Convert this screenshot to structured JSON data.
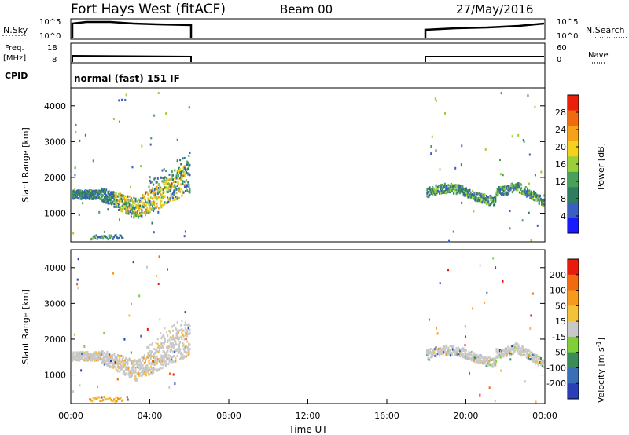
{
  "header": {
    "title": "Fort Hays West (fitACF)",
    "beam": "Beam 00",
    "date": "27/May/2016"
  },
  "nsky_panel": {
    "left_label": "N.Sky",
    "right_label": "N.Search",
    "left_ticks": [
      "10^5",
      "10^0"
    ],
    "right_ticks": [
      "10^5",
      "10^0"
    ]
  },
  "freq_panel": {
    "left_label_top": "Freq.",
    "left_label_bottom": "[MHz]",
    "right_label": "Nave",
    "left_ticks": [
      "18",
      "8"
    ],
    "right_ticks": [
      "60",
      "0"
    ]
  },
  "cpid": {
    "label": "CPID",
    "value": "normal (fast) 151 IF"
  },
  "chart_data": [
    {
      "type": "heatmap",
      "name": "power",
      "ylabel": "Slant Range [km]",
      "yticks": [
        "4000",
        "3000",
        "2000",
        "1000"
      ],
      "ylim": [
        200,
        4500
      ],
      "xlim_hours": [
        0,
        24
      ],
      "colorbar": {
        "label": "Power [dB]",
        "ticks": [
          "28",
          "24",
          "20",
          "16",
          "12",
          "8",
          "4"
        ],
        "colors": [
          "#1a1aff",
          "#3b5fc0",
          "#2e7d5e",
          "#4aa05a",
          "#9bcf3a",
          "#f2d21a",
          "#f5a21a",
          "#f06a10",
          "#e8200c"
        ]
      },
      "data_windows_hours": [
        [
          0,
          6
        ],
        [
          18,
          24
        ]
      ]
    },
    {
      "type": "heatmap",
      "name": "velocity",
      "ylabel": "Slant Range [km]",
      "yticks": [
        "4000",
        "3000",
        "2000",
        "1000"
      ],
      "ylim": [
        200,
        4500
      ],
      "xlim_hours": [
        0,
        24
      ],
      "colorbar": {
        "label": "Velocity [m s",
        "label_sup": "-1",
        "label_end": "]",
        "ticks": [
          "200",
          "100",
          "50",
          "15",
          "-15",
          "-50",
          "-100",
          "-200"
        ],
        "colors": [
          "#2a3fb5",
          "#3a6fb8",
          "#3b8a5a",
          "#7fcf3a",
          "#c8c8c8",
          "#f4c23a",
          "#f59a1a",
          "#f26a10",
          "#e81c0c"
        ]
      },
      "data_windows_hours": [
        [
          0,
          6
        ],
        [
          18,
          24
        ]
      ]
    }
  ],
  "xaxis": {
    "label": "Time UT",
    "ticks": [
      "00:00",
      "04:00",
      "08:00",
      "12:00",
      "16:00",
      "20:00",
      "00:00"
    ]
  }
}
